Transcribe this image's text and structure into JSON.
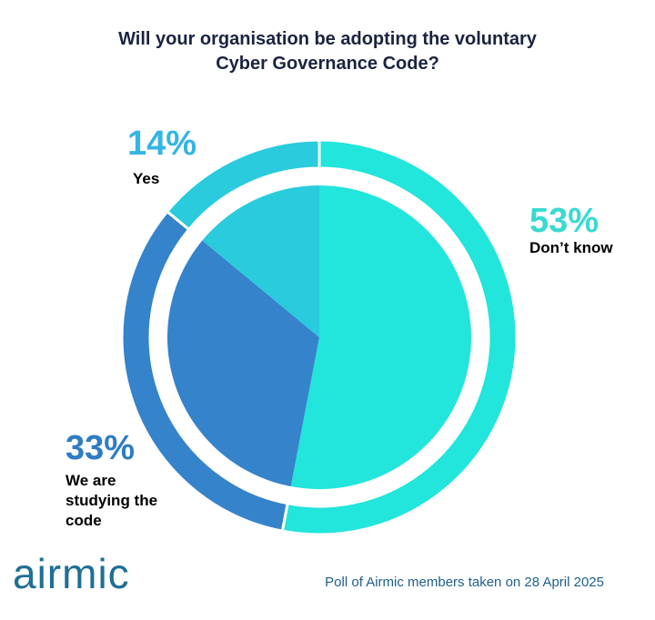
{
  "title_line1": "Will your organisation be adopting the voluntary",
  "title_line2": "Cyber Governance Code?",
  "chart_data": {
    "type": "pie",
    "title": "Will your organisation be adopting the voluntary Cyber Governance Code?",
    "slices": [
      {
        "label": "Don’t know",
        "value": 53,
        "value_label": "53%",
        "color": "#22e5db",
        "label_color": "#3ad9d2"
      },
      {
        "label": "We are studying the code",
        "value": 33,
        "value_label": "33%",
        "color": "#3583ca",
        "label_color": "#2f7cc4"
      },
      {
        "label": "Yes",
        "value": 14,
        "value_label": "14%",
        "color": "#29cbdd",
        "label_color": "#35b4e6"
      }
    ]
  },
  "labels": {
    "dont_know_line": "Don’t know",
    "studying_line1": "We are",
    "studying_line2": "studying the",
    "studying_line3": "code",
    "yes_line": "Yes"
  },
  "brand": {
    "logo_text": "airmic",
    "color": "#1e6f96"
  },
  "footnote": "Poll of Airmic members taken on 28 April 2025"
}
